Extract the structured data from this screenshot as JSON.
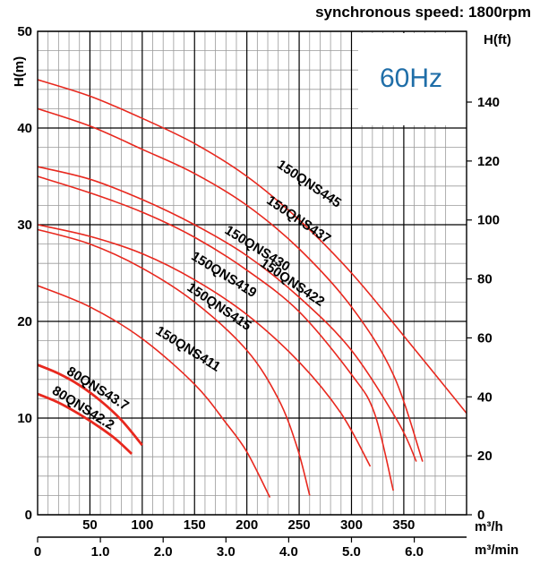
{
  "title": "synchronous speed: 1800rpm",
  "badge": "60Hz",
  "chart_data": {
    "type": "line",
    "xlabel": "m³/h",
    "x2label": "m³/min",
    "ylabel": "H(m)",
    "y2label": "H(ft)",
    "xlim": [
      0,
      410
    ],
    "ylim": [
      0,
      50
    ],
    "y2lim": [
      0,
      164
    ],
    "grid": true,
    "x_ticks": [
      50,
      100,
      150,
      200,
      250,
      300,
      350
    ],
    "x2_ticks": [
      "0",
      "1.0",
      "2.0",
      "3.0",
      "4.0",
      "5.0",
      "6.0"
    ],
    "x2_tick_values": [
      0,
      1,
      2,
      3,
      4,
      5,
      6
    ],
    "y_ticks": [
      0,
      10,
      20,
      30,
      40,
      50
    ],
    "y2_ticks": [
      0,
      20,
      40,
      60,
      80,
      100,
      120,
      140
    ],
    "line_color": "#e8281e",
    "series": [
      {
        "name": "150QNS445",
        "x": [
          0,
          50,
          100,
          150,
          200,
          250,
          300,
          350,
          410
        ],
        "y": [
          45,
          43.3,
          41,
          38.4,
          35,
          30.5,
          25,
          18.5,
          10.5
        ]
      },
      {
        "name": "150QNS437",
        "x": [
          0,
          50,
          100,
          150,
          200,
          250,
          300,
          340,
          368
        ],
        "y": [
          42,
          40.2,
          37.8,
          35.3,
          32,
          27.5,
          21.5,
          14.5,
          5.5
        ]
      },
      {
        "name": "150QNS430",
        "x": [
          0,
          50,
          100,
          150,
          200,
          250,
          300,
          345,
          362
        ],
        "y": [
          36,
          34.7,
          32.6,
          30,
          26.8,
          22.5,
          17,
          9.5,
          5.5
        ]
      },
      {
        "name": "150QNS422",
        "x": [
          0,
          50,
          100,
          150,
          200,
          250,
          300,
          322,
          340
        ],
        "y": [
          35,
          33.3,
          31.3,
          28.7,
          25.3,
          21,
          14.5,
          10.5,
          2.5
        ]
      },
      {
        "name": "150QNS419",
        "x": [
          0,
          50,
          100,
          150,
          200,
          250,
          290,
          318
        ],
        "y": [
          30,
          28.8,
          27,
          24.3,
          20.7,
          15.8,
          10.5,
          5
        ]
      },
      {
        "name": "150QNS415",
        "x": [
          0,
          50,
          100,
          150,
          200,
          230,
          248,
          260
        ],
        "y": [
          29.5,
          28,
          25.5,
          22,
          17,
          12,
          7,
          2
        ]
      },
      {
        "name": "150QNS411",
        "x": [
          0,
          50,
          100,
          150,
          180,
          200,
          222
        ],
        "y": [
          23.7,
          21.5,
          18.2,
          13.5,
          9.5,
          6.5,
          1.8
        ]
      },
      {
        "name": "80QNS43.7",
        "x": [
          0,
          20,
          40,
          60,
          80,
          100
        ],
        "y": [
          15.5,
          14.6,
          13.4,
          11.8,
          9.8,
          7.2
        ]
      },
      {
        "name": "80QNS42.2",
        "x": [
          0,
          20,
          40,
          60,
          75,
          90
        ],
        "y": [
          12.5,
          11.6,
          10.4,
          9,
          7.8,
          6.3
        ]
      }
    ],
    "curve_labels": [
      {
        "text": "150QNS445",
        "x": 228,
        "y": 36,
        "angle": 34
      },
      {
        "text": "150QNS437",
        "x": 218,
        "y": 32.3,
        "angle": 34
      },
      {
        "text": "150QNS430",
        "x": 178,
        "y": 29.2,
        "angle": 32
      },
      {
        "text": "150QNS422",
        "x": 212,
        "y": 25.8,
        "angle": 34
      },
      {
        "text": "150QNS419",
        "x": 146,
        "y": 26.5,
        "angle": 32
      },
      {
        "text": "150QNS415",
        "x": 142,
        "y": 23.3,
        "angle": 34
      },
      {
        "text": "150QNS411",
        "x": 112,
        "y": 18.8,
        "angle": 32
      },
      {
        "text": "80QNS43.7",
        "x": 27,
        "y": 14.6,
        "angle": 32
      },
      {
        "text": "80QNS42.2",
        "x": 13,
        "y": 12.6,
        "angle": 32
      }
    ]
  }
}
